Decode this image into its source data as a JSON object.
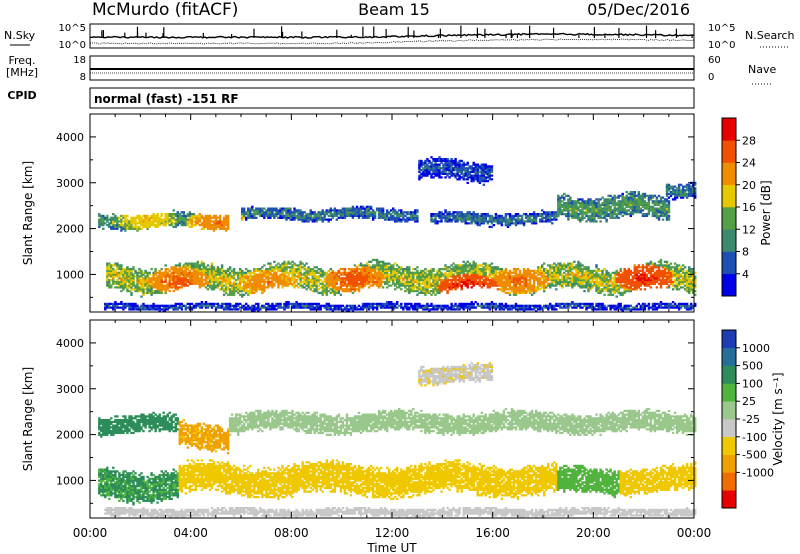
{
  "header": {
    "station": "McMurdo (fitACF)",
    "beam": "Beam 15",
    "date": "05/Dec/2016"
  },
  "top_panels": {
    "nsky_label": "N.Sky",
    "nsky_ticks": [
      "10^5",
      "10^0"
    ],
    "nsearch_label": "N.Search",
    "nsearch_ticks": [
      "10^5",
      "10^0"
    ],
    "freq_label": "Freq.",
    "freq_unit": "[MHz]",
    "freq_ticks": [
      "18",
      "8"
    ],
    "nave_label": "Nave",
    "nave_ticks": [
      "60",
      "0"
    ],
    "cpid_label": "CPID",
    "cpid_text": "normal (fast) -151 RF"
  },
  "axes": {
    "ylabel": "Slant Range [km]",
    "xlabel": "Time UT",
    "x_tick_labels": [
      "00:00",
      "04:00",
      "08:00",
      "12:00",
      "16:00",
      "20:00",
      "00:00"
    ],
    "y_tick_labels": [
      "1000",
      "2000",
      "3000",
      "4000"
    ]
  },
  "colorbars": {
    "power": {
      "label": "Power [dB]",
      "ticks": [
        "4",
        "8",
        "12",
        "16",
        "20",
        "24",
        "28"
      ],
      "colors": [
        "#0000e6",
        "#1e50b4",
        "#3c8a6e",
        "#55a046",
        "#e6c800",
        "#f08c00",
        "#f05000",
        "#e60000"
      ]
    },
    "velocity": {
      "label": "Velocity [m s⁻¹]",
      "ticks": [
        "1000",
        "500",
        "100",
        "25",
        "-25",
        "-100",
        "-500",
        "-1000"
      ],
      "colors": [
        "#1e3cb4",
        "#286e9b",
        "#2d8c5a",
        "#50b43c",
        "#9ac88c",
        "#c8c8c8",
        "#f0c800",
        "#f0a000",
        "#f06e00",
        "#e60000"
      ]
    }
  },
  "chart_data": [
    {
      "type": "heatmap",
      "title": "Power",
      "xlabel": "Time UT",
      "ylabel": "Slant Range [km]",
      "xlim": [
        0,
        24
      ],
      "ylim": [
        180,
        4500
      ],
      "colorbar_label": "Power [dB]",
      "colorbar_range": [
        0,
        32
      ],
      "bands": [
        {
          "t0": 0.6,
          "t1": 24.0,
          "r_center": 900,
          "r_half": 260,
          "level": 18
        },
        {
          "t0": 0.3,
          "t1": 5.5,
          "r_center": 2150,
          "r_half": 150,
          "level": 13
        },
        {
          "t0": 6.0,
          "t1": 13.0,
          "r_center": 2300,
          "r_half": 120,
          "level": 10
        },
        {
          "t0": 13.5,
          "t1": 18.5,
          "r_center": 2200,
          "r_half": 120,
          "level": 9
        },
        {
          "t0": 18.5,
          "t1": 23.0,
          "r_center": 2450,
          "r_half": 230,
          "level": 13
        },
        {
          "t0": 13.0,
          "t1": 16.0,
          "r_center": 3250,
          "r_half": 200,
          "level": 7
        },
        {
          "t0": 22.8,
          "t1": 24.0,
          "r_center": 2850,
          "r_half": 150,
          "level": 10
        },
        {
          "t0": 0.5,
          "t1": 24.0,
          "r_center": 280,
          "r_half": 70,
          "level": 6
        }
      ],
      "hotspots": [
        {
          "t": 3.5,
          "r": 850,
          "level": 26
        },
        {
          "t": 7.0,
          "r": 800,
          "level": 24
        },
        {
          "t": 10.5,
          "r": 880,
          "level": 27
        },
        {
          "t": 15.0,
          "r": 700,
          "level": 30
        },
        {
          "t": 17.0,
          "r": 850,
          "level": 25
        },
        {
          "t": 22.0,
          "r": 900,
          "level": 29
        },
        {
          "t": 2.2,
          "r": 2200,
          "level": 20
        },
        {
          "t": 5.0,
          "r": 2100,
          "level": 24
        }
      ]
    },
    {
      "type": "heatmap",
      "title": "Velocity",
      "xlabel": "Time UT",
      "ylabel": "Slant Range [km]",
      "xlim": [
        0,
        24
      ],
      "ylim": [
        180,
        4500
      ],
      "colorbar_label": "Velocity [m s⁻¹]",
      "bands": [
        {
          "t0": 0.3,
          "t1": 3.5,
          "r_center": 900,
          "r_half": 300,
          "velocity": 120
        },
        {
          "t0": 3.5,
          "t1": 18.5,
          "r_center": 1000,
          "r_half": 300,
          "velocity": -200
        },
        {
          "t0": 18.5,
          "t1": 21.0,
          "r_center": 950,
          "r_half": 250,
          "velocity": 60
        },
        {
          "t0": 21.0,
          "t1": 24.0,
          "r_center": 1000,
          "r_half": 250,
          "velocity": -200
        },
        {
          "t0": 0.3,
          "t1": 3.5,
          "r_center": 2200,
          "r_half": 180,
          "velocity": 200
        },
        {
          "t0": 3.5,
          "t1": 5.5,
          "r_center": 1950,
          "r_half": 250,
          "velocity": -700
        },
        {
          "t0": 5.5,
          "t1": 24.0,
          "r_center": 2250,
          "r_half": 200,
          "velocity": 0
        },
        {
          "t0": 13.0,
          "t1": 16.0,
          "r_center": 3300,
          "r_half": 180,
          "velocity": -80
        },
        {
          "t0": 0.5,
          "t1": 24.0,
          "r_center": 290,
          "r_half": 80,
          "velocity": -50
        }
      ]
    }
  ]
}
